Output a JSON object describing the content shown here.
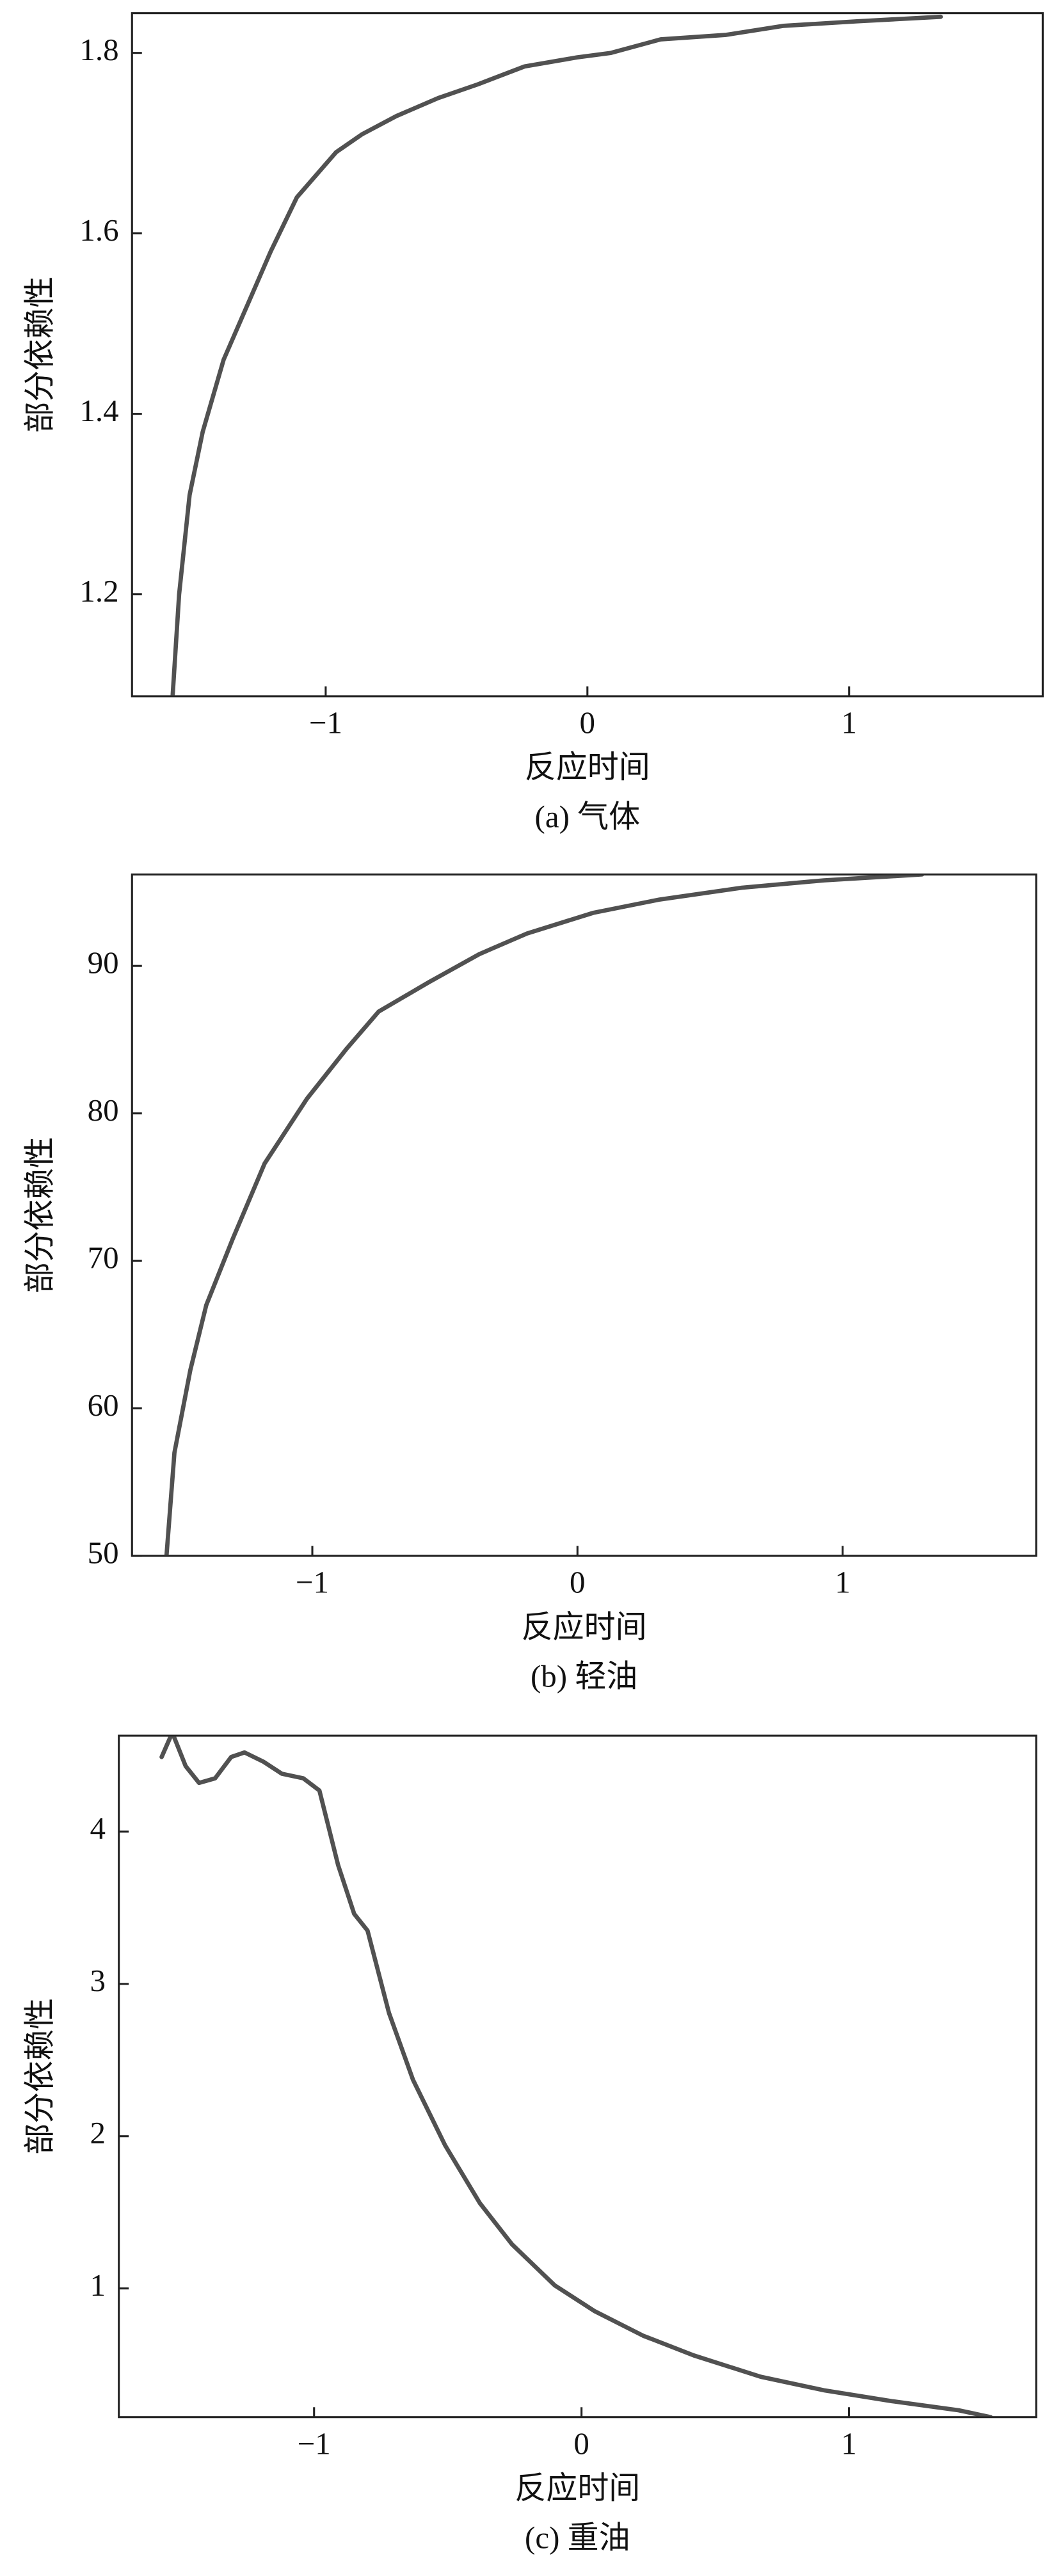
{
  "chart_data": [
    {
      "type": "line",
      "xlabel": "反应时间",
      "ylabel": "部分依赖性",
      "caption": "(a) 气体",
      "x": [
        -1.585,
        -1.56,
        -1.52,
        -1.47,
        -1.39,
        -1.3,
        -1.21,
        -1.11,
        -0.96,
        -0.86,
        -0.73,
        -0.57,
        -0.42,
        -0.24,
        -0.04,
        0.09,
        0.28,
        0.53,
        0.75,
        1.03,
        1.35
      ],
      "values": [
        1.087,
        1.2,
        1.31,
        1.38,
        1.46,
        1.52,
        1.58,
        1.64,
        1.69,
        1.71,
        1.73,
        1.75,
        1.765,
        1.785,
        1.795,
        1.8,
        1.815,
        1.82,
        1.83,
        1.835,
        1.84
      ],
      "color": "#333333",
      "xlim": [
        -1.74,
        1.74
      ],
      "xticks": [
        {
          "value": -1,
          "label": "−1"
        },
        0,
        1
      ],
      "ylim": [
        1.087,
        1.844
      ],
      "yticks": [
        1.2,
        1.4,
        1.6,
        1.8
      ]
    },
    {
      "type": "line",
      "xlabel": "反应时间",
      "ylabel": "部分依赖性",
      "caption": "(b) 轻油",
      "x": [
        -1.55,
        -1.52,
        -1.46,
        -1.4,
        -1.3,
        -1.18,
        -1.02,
        -0.87,
        -0.75,
        -0.56,
        -0.37,
        -0.19,
        0.06,
        0.31,
        0.62,
        0.93,
        1.3
      ],
      "values": [
        50,
        57,
        62.6,
        67,
        71.5,
        76.6,
        81,
        84.4,
        86.9,
        88.9,
        90.8,
        92.2,
        93.6,
        94.5,
        95.3,
        95.8,
        96.2
      ],
      "color": "#333333",
      "xlim": [
        -1.68,
        1.73
      ],
      "xticks": [
        {
          "value": -1,
          "label": "−1"
        },
        0,
        1
      ],
      "ylim": [
        50,
        96.2
      ],
      "yticks": [
        50,
        60,
        70,
        80,
        90
      ]
    },
    {
      "type": "line",
      "xlabel": "反应时间",
      "ylabel": "部分依赖性",
      "caption": "(c) 重油",
      "x": [
        -1.57,
        -1.53,
        -1.48,
        -1.43,
        -1.37,
        -1.31,
        -1.26,
        -1.19,
        -1.12,
        -1.04,
        -0.98,
        -0.91,
        -0.85,
        -0.8,
        -0.72,
        -0.63,
        -0.51,
        -0.38,
        -0.26,
        -0.1,
        0.05,
        0.23,
        0.42,
        0.67,
        0.91,
        1.16,
        1.41,
        1.53
      ],
      "values": [
        4.49,
        4.65,
        4.43,
        4.32,
        4.35,
        4.49,
        4.52,
        4.46,
        4.38,
        4.35,
        4.27,
        3.78,
        3.46,
        3.35,
        2.81,
        2.37,
        1.94,
        1.56,
        1.29,
        1.02,
        0.85,
        0.69,
        0.56,
        0.42,
        0.33,
        0.26,
        0.2,
        0.155
      ],
      "color": "#333333",
      "xlim": [
        -1.73,
        1.7
      ],
      "xticks": [
        {
          "value": -1,
          "label": "−1"
        },
        0,
        1
      ],
      "ylim": [
        0.155,
        4.63
      ],
      "yticks": [
        1,
        2,
        3,
        4
      ]
    }
  ]
}
